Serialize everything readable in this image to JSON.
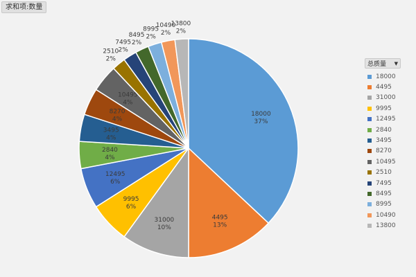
{
  "field_button": {
    "label": "求和项:数量"
  },
  "legend": {
    "title": "总质量",
    "dropdown_icon": "▼"
  },
  "chart_data": {
    "type": "pie",
    "categories": [
      "18000",
      "4495",
      "31000",
      "9995",
      "12495",
      "2840",
      "3495",
      "8270",
      "10495",
      "2510",
      "7495",
      "8495",
      "8995",
      "10490",
      "13800"
    ],
    "percent_labels": [
      "37%",
      "13%",
      "10%",
      "6%",
      "6%",
      "4%",
      "4%",
      "4%",
      "4%",
      "2%",
      "2%",
      "2%",
      "2%",
      "2%",
      "2%"
    ],
    "values": [
      37,
      13,
      10,
      6,
      6,
      4,
      4,
      4,
      4,
      2,
      2,
      2,
      2,
      2,
      2
    ],
    "colors": [
      "#5b9bd5",
      "#ed7d31",
      "#a5a5a5",
      "#ffc000",
      "#4472c4",
      "#70ad47",
      "#255e91",
      "#9e480e",
      "#636363",
      "#997300",
      "#264478",
      "#43682b",
      "#7cafdd",
      "#f1975a",
      "#b7b7b7"
    ],
    "legend_position": "right"
  }
}
